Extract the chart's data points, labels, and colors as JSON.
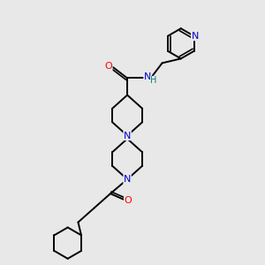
{
  "background_color": "#e8e8e8",
  "fig_size": [
    3.0,
    3.0
  ],
  "dpi": 100,
  "atom_colors": {
    "N": "#0000cc",
    "O": "#ff0000",
    "NH": "#008080",
    "C": "#000000"
  },
  "bond_color": "#000000",
  "bond_width": 1.4,
  "font_size_atom": 8.0
}
